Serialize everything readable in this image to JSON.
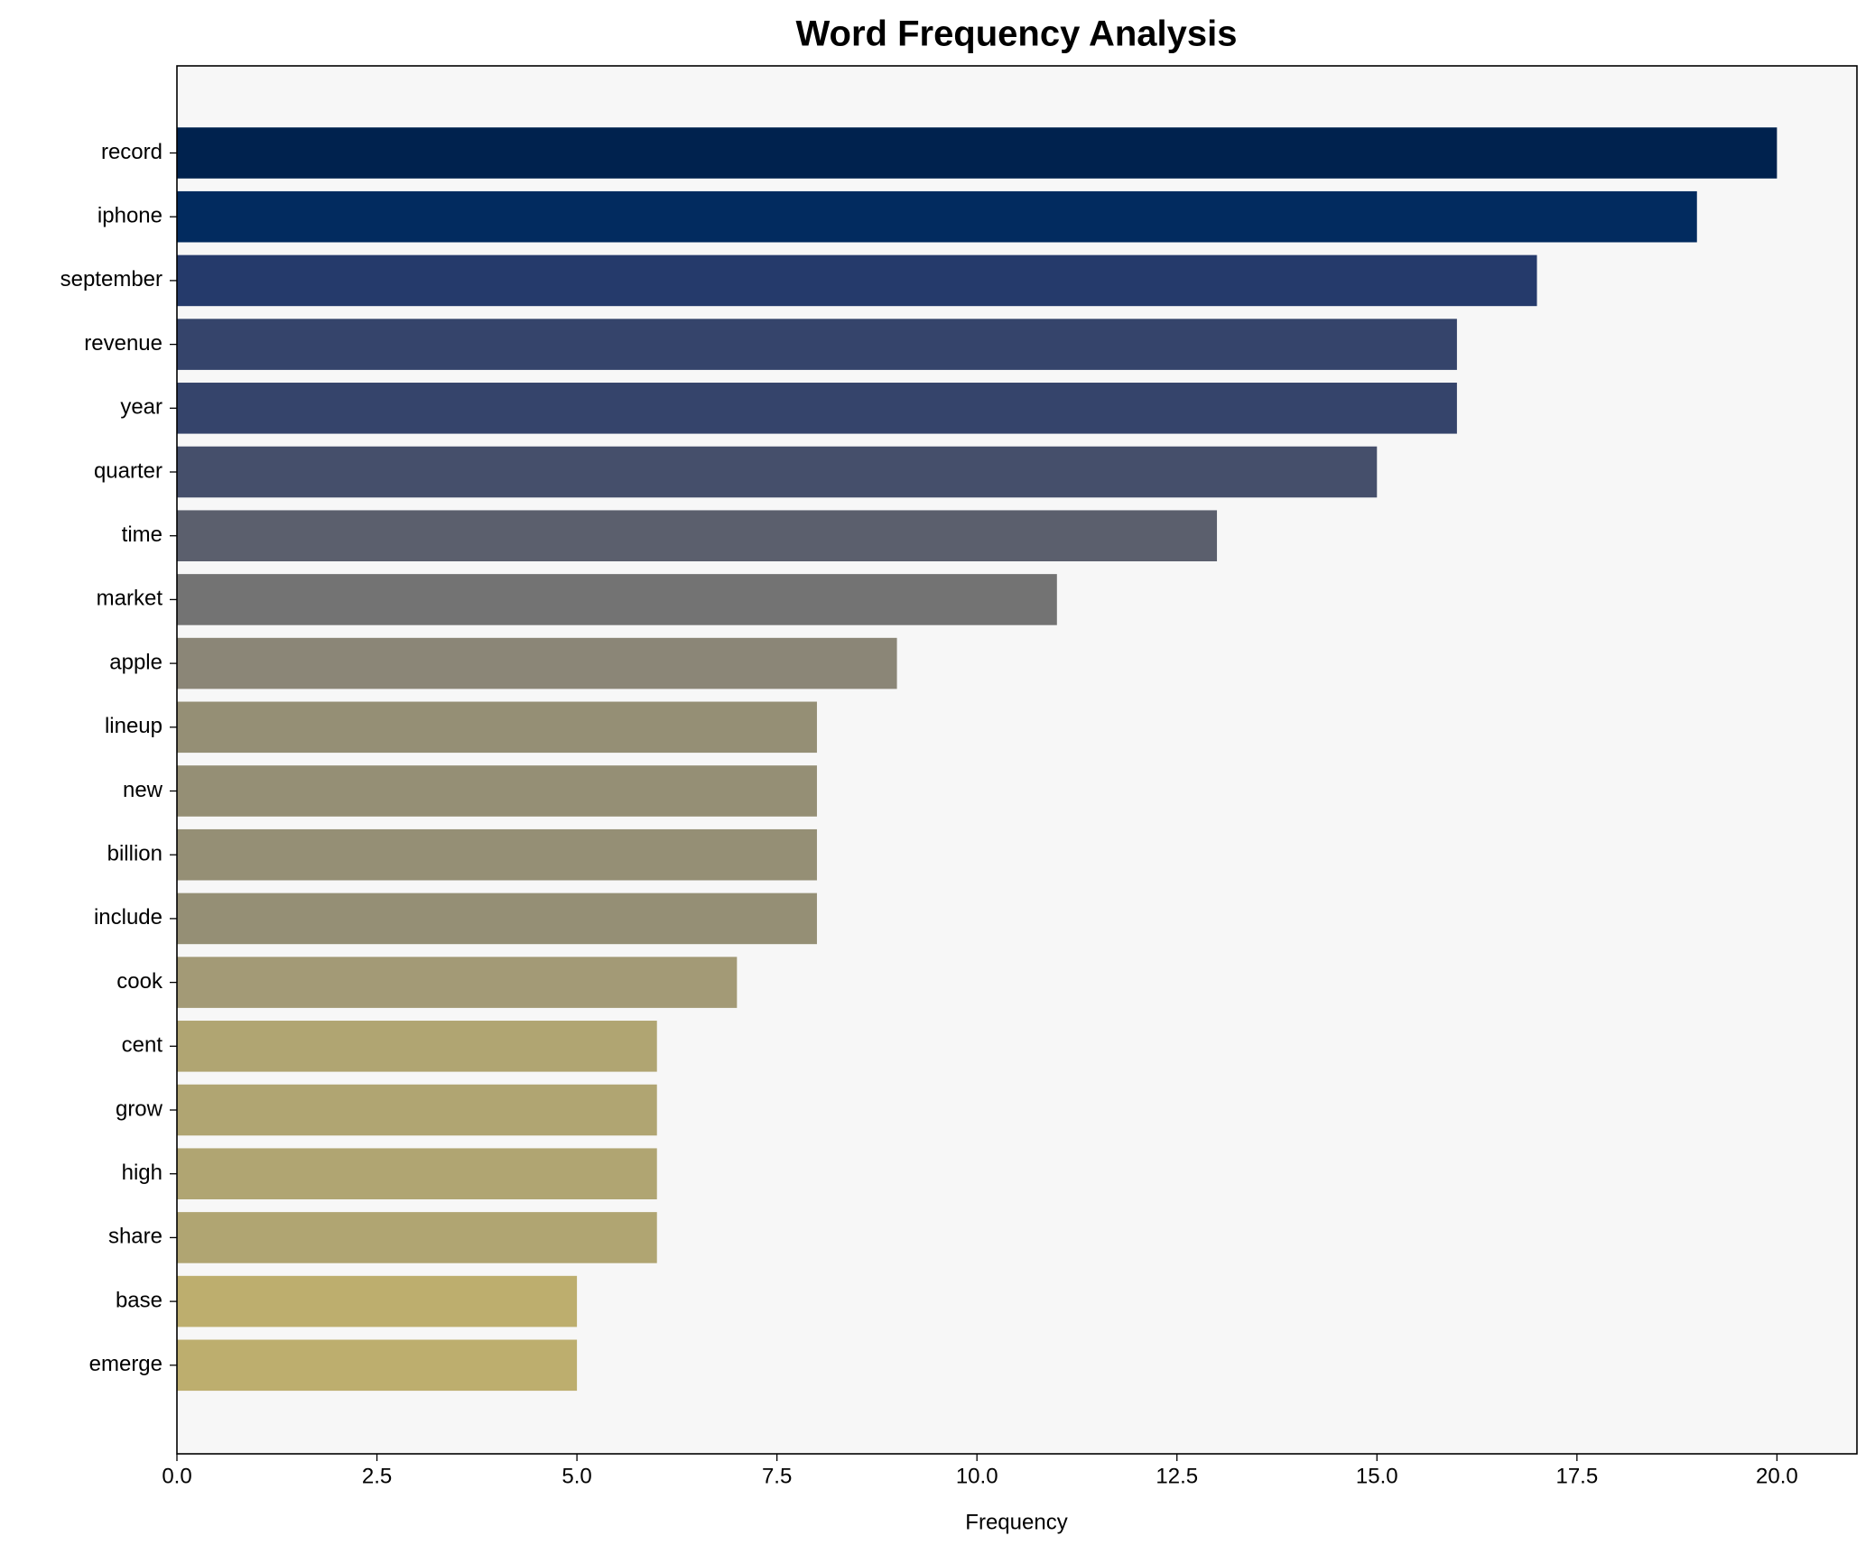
{
  "chart_data": {
    "type": "barh",
    "title": "Word Frequency Analysis",
    "x_label": "Frequency",
    "categories": [
      "record",
      "iphone",
      "september",
      "revenue",
      "year",
      "quarter",
      "time",
      "market",
      "apple",
      "lineup",
      "new",
      "billion",
      "include",
      "cook",
      "cent",
      "grow",
      "high",
      "share",
      "base",
      "emerge"
    ],
    "values": [
      20,
      19,
      17,
      16,
      16,
      15,
      13,
      11,
      9,
      8,
      8,
      8,
      8,
      7,
      6,
      6,
      6,
      6,
      5,
      5
    ],
    "colors": [
      "#00224e",
      "#022b5f",
      "#253a6b",
      "#35446b",
      "#35446b",
      "#454f6b",
      "#5b5f6d",
      "#737373",
      "#8b8677",
      "#958f75",
      "#958f75",
      "#958f75",
      "#958f75",
      "#a39a76",
      "#b0a572",
      "#b0a572",
      "#b0a572",
      "#b0a572",
      "#bdae6e",
      "#bdae6e"
    ],
    "xlim": [
      0,
      21
    ],
    "xticks": [
      {
        "value": 0,
        "label": "0.0"
      },
      2.5,
      {
        "value": 5,
        "label": "5.0"
      },
      7.5,
      {
        "value": 10,
        "label": "10.0"
      },
      12.5,
      {
        "value": 15,
        "label": "15.0"
      },
      17.5,
      {
        "value": 20,
        "label": "20.0"
      }
    ],
    "grid": false
  }
}
